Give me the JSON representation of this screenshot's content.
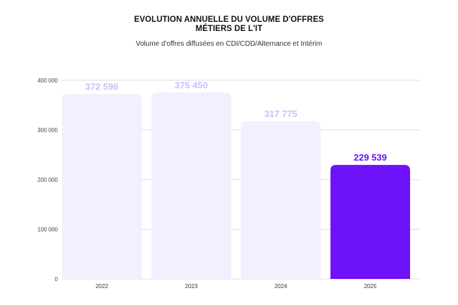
{
  "chart_data": {
    "type": "bar",
    "title": [
      "EVOLUTION ANNUELLE DU VOLUME D'OFFRES",
      "MÉTIERS DE L'IT"
    ],
    "subtitle": "Volume d'offres diffusées en CDI/CDD/Alternance et Intérim",
    "categories": [
      "2022",
      "2023",
      "2024",
      "2025"
    ],
    "values": [
      372596,
      375450,
      317775,
      229539
    ],
    "value_labels": [
      "372 596",
      "375 450",
      "317 775",
      "229 539"
    ],
    "ylim": [
      0,
      400000
    ],
    "y_ticks": [
      0,
      100000,
      200000,
      300000,
      400000
    ],
    "y_tick_labels": [
      "0",
      "100 000",
      "200 000",
      "300 000",
      "400 000"
    ],
    "grid": true,
    "colors": {
      "bar": "#f3efff",
      "bar_highlight": "#6e12fa",
      "label": "#cfbcf7",
      "label_highlight": "#6e12fa",
      "grid": "#dcdcdc"
    }
  }
}
